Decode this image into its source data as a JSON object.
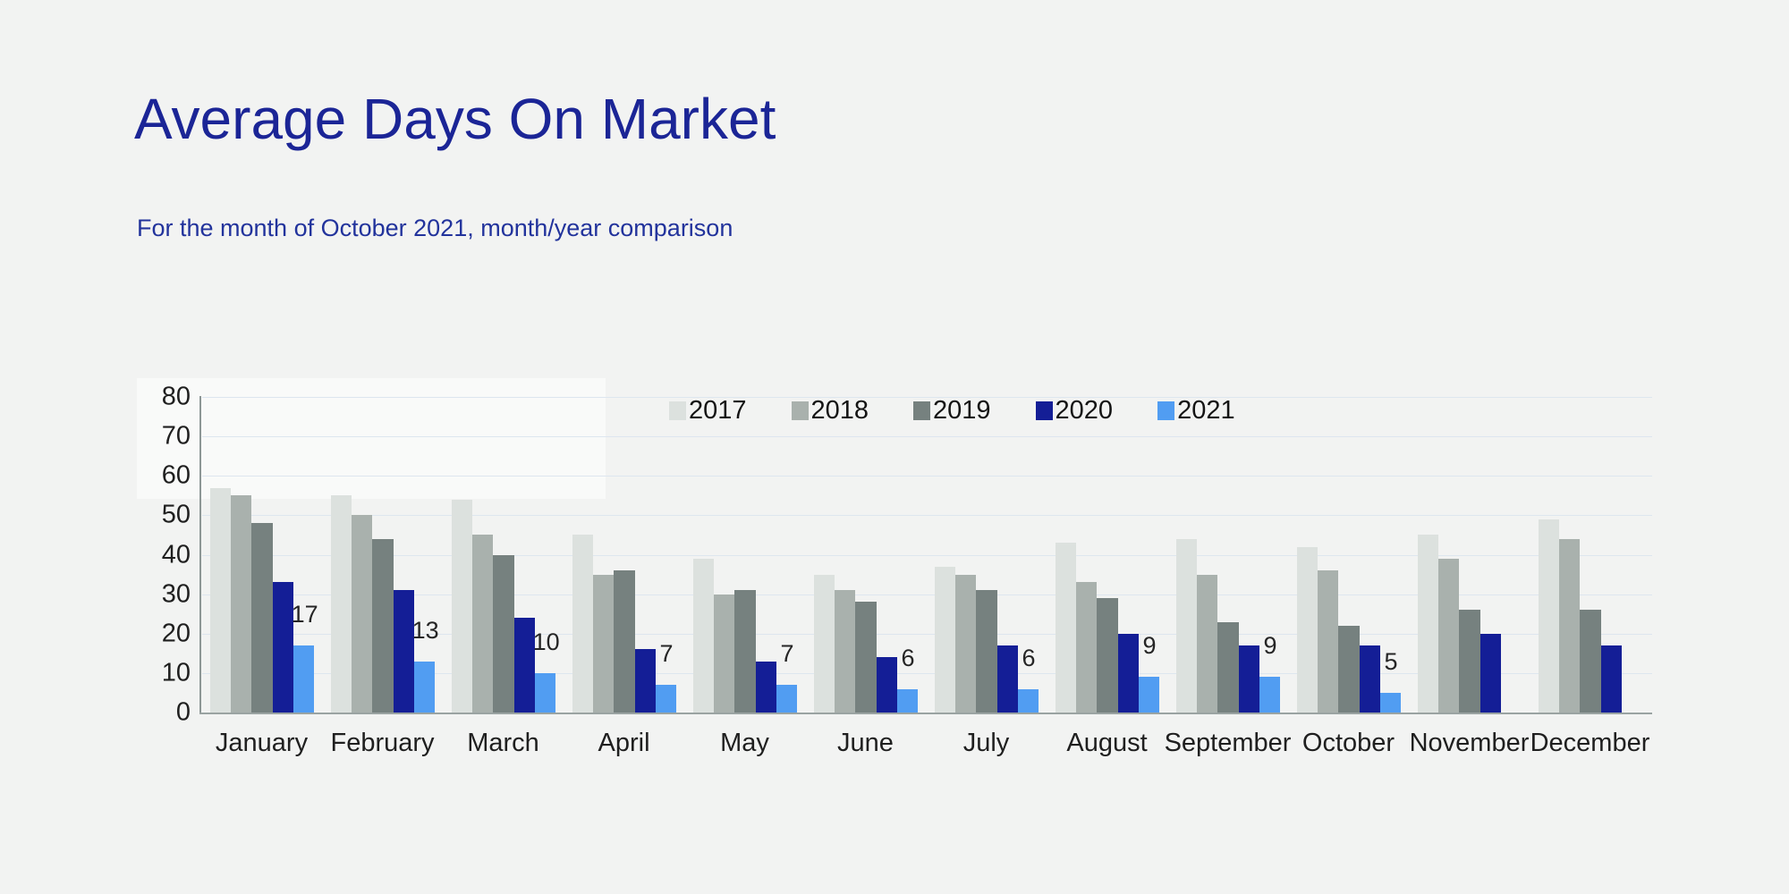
{
  "page": {
    "background": "#f2f3f2"
  },
  "header": {
    "title": "Average Days On Market",
    "subtitle": "For the month of October 2021, month/year comparison",
    "title_color": "#1b2596"
  },
  "chart_data": {
    "type": "bar",
    "title": "Average Days On Market",
    "subtitle": "For the month of October 2021, month/year comparison",
    "categories": [
      "January",
      "February",
      "March",
      "April",
      "May",
      "June",
      "July",
      "August",
      "September",
      "October",
      "November",
      "December"
    ],
    "series": [
      {
        "name": "2017",
        "color": "#dce1de",
        "values": [
          57,
          55,
          54,
          45,
          39,
          35,
          37,
          43,
          44,
          42,
          45,
          49
        ]
      },
      {
        "name": "2018",
        "color": "#a9b1ad",
        "values": [
          55,
          50,
          45,
          35,
          30,
          31,
          35,
          33,
          35,
          36,
          39,
          44
        ]
      },
      {
        "name": "2019",
        "color": "#76817f",
        "values": [
          48,
          44,
          40,
          36,
          31,
          28,
          31,
          29,
          23,
          22,
          26,
          26
        ]
      },
      {
        "name": "2020",
        "color": "#141e96",
        "values": [
          33,
          31,
          24,
          16,
          13,
          14,
          17,
          20,
          17,
          17,
          20,
          17
        ]
      },
      {
        "name": "2021",
        "color": "#519df2",
        "values": [
          17,
          13,
          10,
          7,
          7,
          6,
          6,
          9,
          9,
          5,
          null,
          null
        ]
      }
    ],
    "data_labels": {
      "series": "2021",
      "values": [
        17,
        13,
        10,
        7,
        7,
        6,
        6,
        9,
        9,
        5,
        null,
        null
      ]
    },
    "xlabel": "",
    "ylabel": "",
    "ylim": [
      0,
      80
    ],
    "ytick_step": 10,
    "grid": true,
    "legend_position": "top-center",
    "axis_text_color": "#1f1f1f",
    "gridline_color": "#dde6ef"
  }
}
